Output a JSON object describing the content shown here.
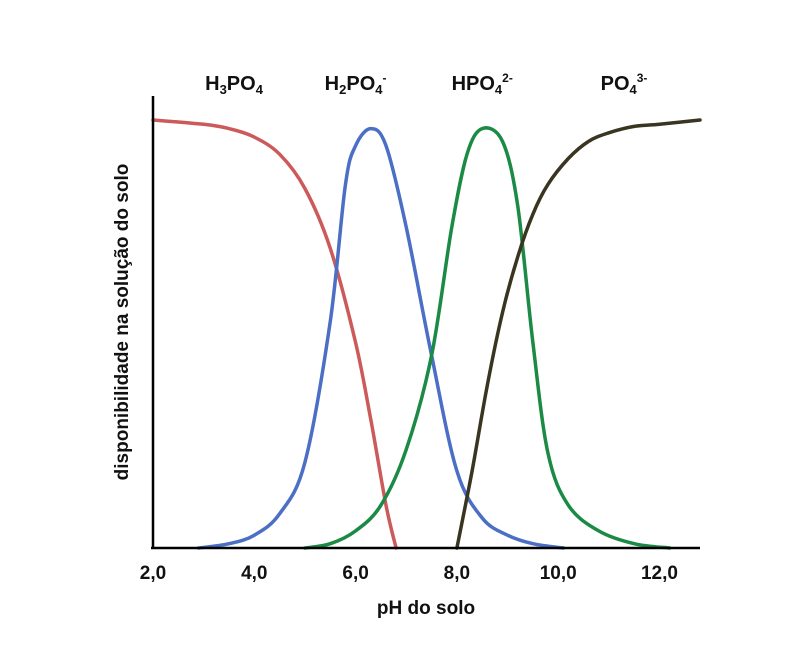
{
  "chart_data": {
    "type": "line",
    "title": "",
    "xlabel": "pH do solo",
    "ylabel": "disponibilidade na solução do solo",
    "xlim": [
      2.0,
      12.8
    ],
    "ylim": [
      0,
      1
    ],
    "x_ticks": [
      2.0,
      4.0,
      6.0,
      8.0,
      10.0,
      12.0
    ],
    "x_tick_labels": [
      "2,0",
      "4,0",
      "6,0",
      "8,0",
      "10,0",
      "12,0"
    ],
    "y_ticks": [],
    "grid": false,
    "legend": "species labels above curves",
    "series": [
      {
        "name": "H3PO4",
        "label_parts": [
          [
            "H",
            ""
          ],
          [
            "3",
            "sub"
          ],
          [
            "PO",
            ""
          ],
          [
            "4",
            "sub"
          ]
        ],
        "label_x": 3.6,
        "color": "#cc5a5a",
        "x": [
          2.0,
          3.0,
          3.5,
          4.0,
          4.5,
          5.0,
          5.5,
          6.0,
          6.3,
          6.6,
          6.8
        ],
        "y": [
          1.0,
          0.99,
          0.98,
          0.96,
          0.92,
          0.84,
          0.7,
          0.48,
          0.3,
          0.1,
          0.0
        ]
      },
      {
        "name": "H2PO4-",
        "label_parts": [
          [
            "H",
            ""
          ],
          [
            "2",
            "sub"
          ],
          [
            "PO",
            ""
          ],
          [
            "4",
            "sub"
          ],
          [
            "-",
            "sup"
          ]
        ],
        "label_x": 6.0,
        "color": "#4b6fc4",
        "x": [
          2.9,
          3.5,
          4.0,
          4.5,
          5.0,
          5.5,
          5.8,
          6.0,
          6.3,
          6.6,
          7.0,
          7.5,
          8.0,
          8.5,
          9.0,
          9.5,
          10.1
        ],
        "y": [
          0.0,
          0.01,
          0.03,
          0.08,
          0.2,
          0.53,
          0.85,
          0.94,
          0.98,
          0.94,
          0.75,
          0.45,
          0.18,
          0.07,
          0.03,
          0.01,
          0.0
        ]
      },
      {
        "name": "HPO4 2-",
        "label_parts": [
          [
            "HPO",
            ""
          ],
          [
            "4",
            "sub"
          ],
          [
            "2-",
            "sup"
          ]
        ],
        "label_x": 8.5,
        "color": "#1a8a45",
        "x": [
          5.0,
          5.5,
          6.0,
          6.5,
          7.0,
          7.5,
          7.9,
          8.2,
          8.5,
          8.9,
          9.2,
          9.5,
          9.8,
          10.2,
          10.8,
          11.5,
          12.2
        ],
        "y": [
          0.0,
          0.01,
          0.04,
          0.1,
          0.23,
          0.45,
          0.75,
          0.92,
          0.98,
          0.95,
          0.8,
          0.48,
          0.22,
          0.1,
          0.04,
          0.01,
          0.0
        ]
      },
      {
        "name": "PO4 3-",
        "label_parts": [
          [
            "PO",
            ""
          ],
          [
            "4",
            "sub"
          ],
          [
            "3-",
            "sup"
          ]
        ],
        "label_x": 11.3,
        "color": "#3a3520",
        "x": [
          8.0,
          8.3,
          8.6,
          8.9,
          9.2,
          9.5,
          9.8,
          10.2,
          10.6,
          11.0,
          11.5,
          12.0,
          12.8
        ],
        "y": [
          0.0,
          0.18,
          0.38,
          0.55,
          0.68,
          0.78,
          0.85,
          0.91,
          0.95,
          0.97,
          0.985,
          0.99,
          1.0
        ]
      }
    ]
  }
}
